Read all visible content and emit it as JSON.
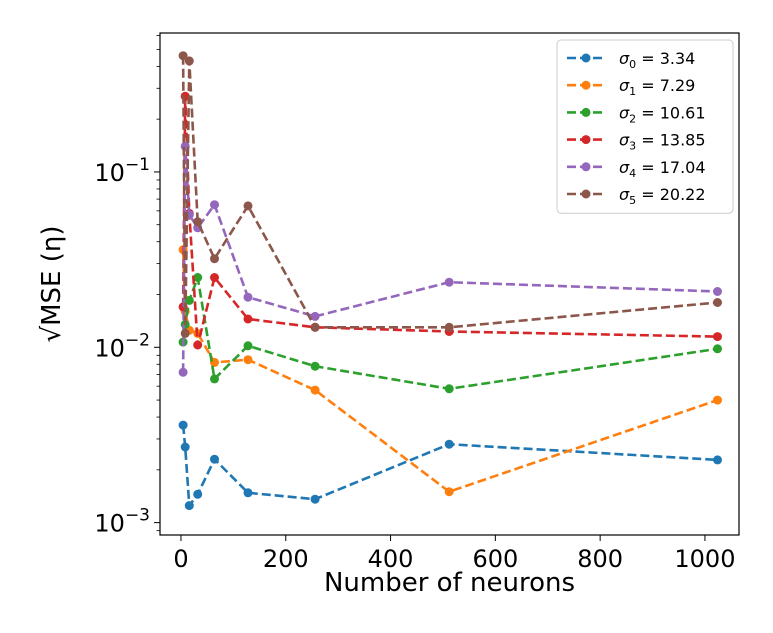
{
  "chart_data": {
    "type": "line",
    "title": "",
    "xlabel": "Number of neurons",
    "ylabel": "√MSE (η)",
    "xlim": [
      -40,
      1065
    ],
    "ylim": [
      0.00085,
      0.62
    ],
    "yscale": "log",
    "grid": false,
    "legend_position": "top-right",
    "xticks": [
      {
        "value": 0,
        "label": "0"
      },
      {
        "value": 200,
        "label": "200"
      },
      {
        "value": 400,
        "label": "400"
      },
      {
        "value": 600,
        "label": "600"
      },
      {
        "value": 800,
        "label": "800"
      },
      {
        "value": 1000,
        "label": "1000"
      }
    ],
    "yticks": [
      {
        "value": 0.001,
        "base": "10",
        "exp": "−3"
      },
      {
        "value": 0.01,
        "base": "10",
        "exp": "−2"
      },
      {
        "value": 0.1,
        "base": "10",
        "exp": "−1"
      }
    ],
    "x": [
      4,
      8,
      16,
      32,
      64,
      128,
      256,
      512,
      1024
    ],
    "series": [
      {
        "name": "σ0 = 3.34",
        "sym": "σ",
        "sub": "0",
        "value_text": " = 3.34",
        "color": "#1f77b4",
        "values": [
          0.0036,
          0.0027,
          0.00125,
          0.00145,
          0.0023,
          0.00148,
          0.00136,
          0.0028,
          0.00228
        ]
      },
      {
        "name": "σ1 = 7.29",
        "sym": "σ",
        "sub": "1",
        "value_text": " = 7.29",
        "color": "#ff7f0e",
        "values": [
          0.036,
          0.016,
          0.0125,
          0.012,
          0.0082,
          0.0085,
          0.0057,
          0.0015,
          0.005
        ]
      },
      {
        "name": "σ2 = 10.61",
        "sym": "σ",
        "sub": "2",
        "value_text": " = 10.61",
        "color": "#2ca02c",
        "values": [
          0.0107,
          0.0135,
          0.0185,
          0.025,
          0.0066,
          0.0102,
          0.0078,
          0.0058,
          0.0098
        ]
      },
      {
        "name": "σ3 = 13.85",
        "sym": "σ",
        "sub": "3",
        "value_text": " = 13.85",
        "color": "#d62728",
        "values": [
          0.017,
          0.27,
          0.058,
          0.0103,
          0.025,
          0.0145,
          0.013,
          0.0123,
          0.0115
        ]
      },
      {
        "name": "σ4 = 17.04",
        "sym": "σ",
        "sub": "4",
        "value_text": " = 17.04",
        "color": "#9467bd",
        "values": [
          0.0072,
          0.14,
          0.057,
          0.048,
          0.065,
          0.0193,
          0.015,
          0.0235,
          0.0208
        ]
      },
      {
        "name": "σ5 = 20.22",
        "sym": "σ",
        "sub": "5",
        "value_text": " = 20.22",
        "color": "#8c564b",
        "values": [
          0.46,
          0.012,
          0.43,
          0.052,
          0.032,
          0.064,
          0.013,
          0.013,
          0.018
        ]
      }
    ]
  }
}
